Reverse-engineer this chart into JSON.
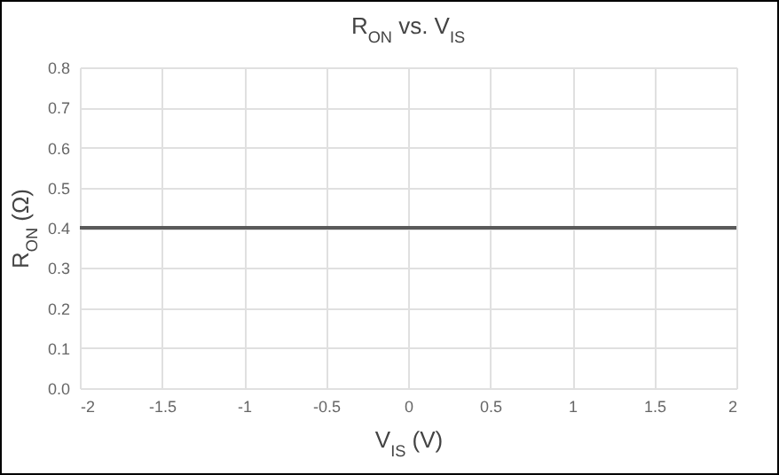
{
  "chart_data": {
    "type": "line",
    "title": "R$_{ON}$ vs. V$_{IS}$",
    "xlabel": "V$_{IS}$ (V)",
    "ylabel": "R$_{ON}$ (Ω)",
    "x": [
      -2,
      2
    ],
    "series": [
      {
        "color": "#5a5a5a",
        "values": [
          0.4,
          0.4
        ]
      }
    ],
    "xlim": [
      -2,
      2
    ],
    "xticks": [
      -2,
      -1.5,
      -1,
      -0.5,
      0,
      0.5,
      1,
      1.5,
      2
    ],
    "ylim": [
      0,
      0.8
    ],
    "yticks": [
      {
        "value": 0,
        "label": "0.0"
      },
      0.1,
      0.2,
      0.3,
      0.4,
      0.5,
      0.6,
      0.7,
      0.8
    ],
    "grid": true,
    "legend": false,
    "marker": "none",
    "line_style": "solid"
  }
}
